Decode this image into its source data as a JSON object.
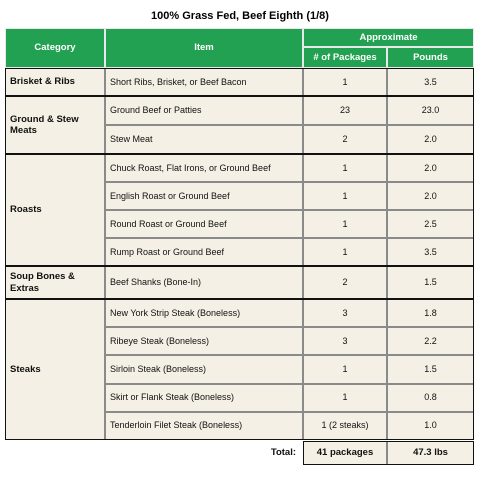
{
  "title": "100% Grass Fed, Beef Eighth (1/8)",
  "header": {
    "category": "Category",
    "item": "Item",
    "approximate": "Approximate",
    "packages": "# of Packages",
    "pounds": "Pounds"
  },
  "groups": [
    {
      "category": "Brisket & Ribs",
      "rows": [
        {
          "item": "Short Ribs, Brisket, or Beef Bacon",
          "packages": "1",
          "pounds": "3.5"
        }
      ]
    },
    {
      "category": "Ground & Stew Meats",
      "rows": [
        {
          "item": "Ground Beef or Patties",
          "packages": "23",
          "pounds": "23.0"
        },
        {
          "item": "Stew Meat",
          "packages": "2",
          "pounds": "2.0"
        }
      ]
    },
    {
      "category": "Roasts",
      "rows": [
        {
          "item": "Chuck Roast, Flat Irons, or Ground Beef",
          "packages": "1",
          "pounds": "2.0"
        },
        {
          "item": "English Roast or Ground Beef",
          "packages": "1",
          "pounds": "2.0"
        },
        {
          "item": "Round Roast or Ground Beef",
          "packages": "1",
          "pounds": "2.5"
        },
        {
          "item": "Rump Roast or Ground Beef",
          "packages": "1",
          "pounds": "3.5"
        }
      ]
    },
    {
      "category": "Soup Bones & Extras",
      "rows": [
        {
          "item": "Beef Shanks (Bone-In)",
          "packages": "2",
          "pounds": "1.5"
        }
      ]
    },
    {
      "category": "Steaks",
      "rows": [
        {
          "item": "New York Strip Steak (Boneless)",
          "packages": "3",
          "pounds": "1.8"
        },
        {
          "item": "Ribeye Steak (Boneless)",
          "packages": "3",
          "pounds": "2.2"
        },
        {
          "item": "Sirloin Steak (Boneless)",
          "packages": "1",
          "pounds": "1.5"
        },
        {
          "item": "Skirt or Flank Steak (Boneless)",
          "packages": "1",
          "pounds": "0.8"
        },
        {
          "item": "Tenderloin Filet Steak (Boneless)",
          "packages": "1 (2 steaks)",
          "pounds": "1.0"
        }
      ]
    }
  ],
  "total": {
    "label": "Total:",
    "packages": "41 packages",
    "pounds": "47.3 lbs"
  }
}
